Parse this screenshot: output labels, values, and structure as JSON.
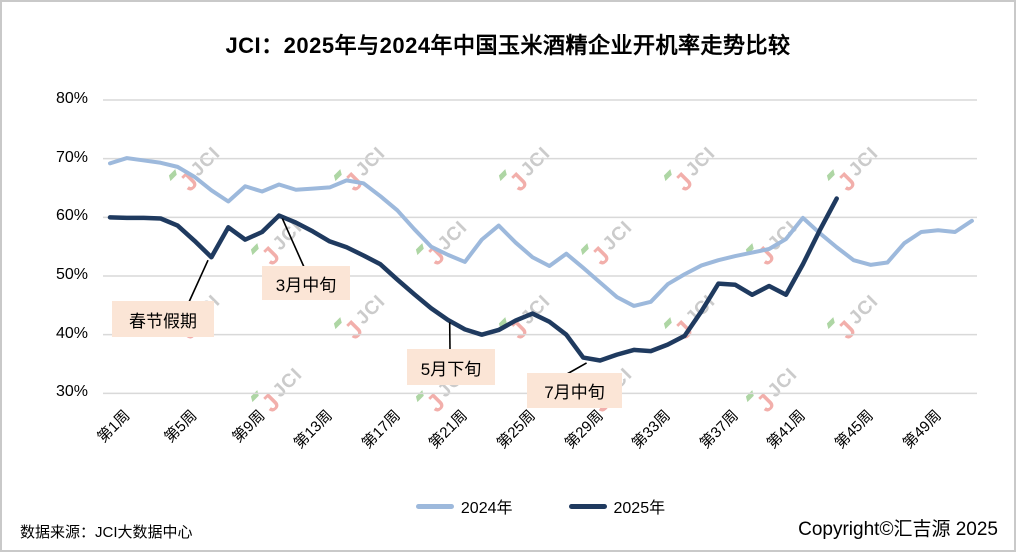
{
  "title": "JCI：2025年与2024年中国玉米酒精企业开机率走势比较",
  "chart_data": {
    "type": "line",
    "x_unit": "week",
    "xlim_weeks": [
      1,
      52
    ],
    "ylim": [
      30,
      80
    ],
    "grid": "horizontal",
    "legend_position": "bottom-center",
    "y_tick_labels": [
      "80%",
      "70%",
      "60%",
      "50%",
      "40%",
      "30%"
    ],
    "y_tick_values": [
      80,
      70,
      60,
      50,
      40,
      30
    ],
    "x_tick_labels": [
      "第1周",
      "第5周",
      "第9周",
      "第13周",
      "第17周",
      "第21周",
      "第25周",
      "第29周",
      "第33周",
      "第37周",
      "第41周",
      "第45周",
      "第49周"
    ],
    "x_tick_weeks": [
      1,
      5,
      9,
      13,
      17,
      21,
      25,
      29,
      33,
      37,
      41,
      45,
      49
    ],
    "series": [
      {
        "name": "2024年",
        "color": "#9DB9DC",
        "width": 4,
        "start_week": 1,
        "values": [
          69.2,
          70.1,
          69.7,
          69.3,
          68.6,
          66.9,
          64.6,
          62.7,
          65.3,
          64.4,
          65.6,
          64.7,
          64.9,
          65.1,
          66.3,
          65.8,
          63.6,
          61.2,
          58,
          55,
          53.6,
          52.4,
          56.2,
          58.6,
          55.7,
          53.2,
          51.7,
          53.8,
          51.4,
          48.9,
          46.4,
          44.9,
          45.6,
          48.6,
          50.3,
          51.8,
          52.7,
          53.4,
          54,
          54.6,
          56.3,
          59.9,
          57.3,
          54.9,
          52.7,
          51.9,
          52.3,
          55.6,
          57.5,
          57.8,
          57.5,
          59.4
        ]
      },
      {
        "name": "2025年",
        "color": "#1F3A5F",
        "width": 4.5,
        "start_week": 1,
        "values": [
          60,
          59.9,
          59.9,
          59.8,
          58.6,
          56,
          53.2,
          58.3,
          56.2,
          57.5,
          60.3,
          59.1,
          57.6,
          55.9,
          54.9,
          53.5,
          52,
          49.4,
          46.9,
          44.5,
          42.5,
          40.9,
          40,
          40.8,
          42.4,
          43.6,
          42.2,
          40,
          36.1,
          35.6,
          36.6,
          37.4,
          37.2,
          38.3,
          39.8,
          44,
          48.7,
          48.5,
          46.8,
          48.3,
          46.8,
          52,
          57.8,
          63.2
        ]
      }
    ],
    "annotations": [
      {
        "label": "春节假期",
        "week": 6.8,
        "value": 53.2
      },
      {
        "label": "3月中旬",
        "week": 11.2,
        "value": 60.3
      },
      {
        "label": "5月下旬",
        "week": 21.1,
        "value": 42.6
      },
      {
        "label": "7月中旬",
        "week": 29.2,
        "value": 35.7
      }
    ]
  },
  "watermark": {
    "mark": "J",
    "text": "JCI"
  },
  "footer": {
    "source": "数据来源：JCI大数据中心",
    "copyright": "Copyright©汇吉源 2025"
  },
  "colors": {
    "gridline": "#D9D9D9",
    "annotation_fill": "#FBE5D6",
    "leader_line": "#000000"
  }
}
